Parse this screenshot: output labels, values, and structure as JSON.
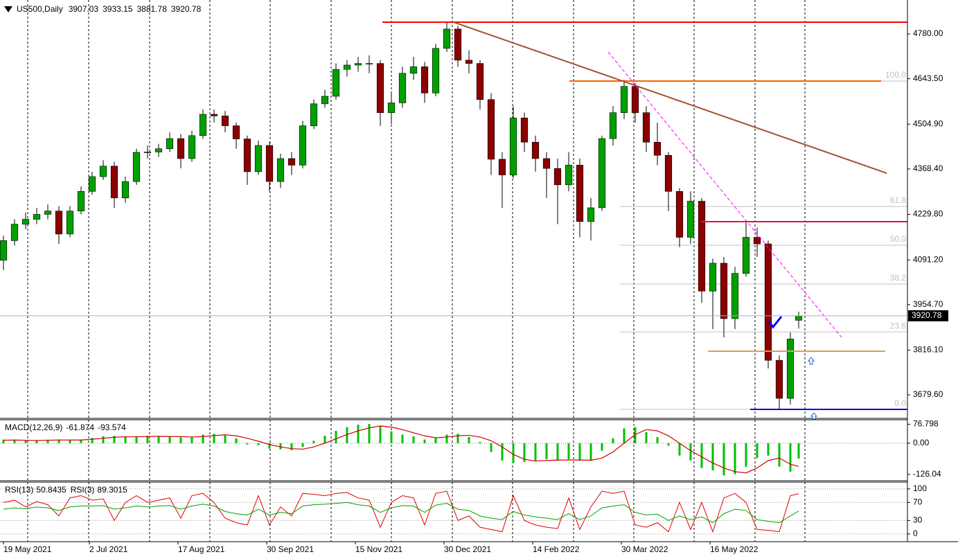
{
  "chart_data": [
    {
      "type": "candlestick",
      "title": "US500,Daily",
      "x": [
        0,
        4,
        8,
        12,
        16,
        20,
        24,
        28,
        32,
        36,
        40,
        44,
        48,
        52,
        56,
        60,
        64,
        68,
        72,
        76,
        80,
        84,
        88,
        92,
        96,
        100,
        104,
        108,
        112,
        116,
        120,
        124,
        128,
        132,
        136,
        140,
        144,
        148,
        152,
        156,
        160,
        164,
        168,
        172,
        176,
        180,
        184,
        188,
        192,
        196,
        200,
        204,
        208,
        212,
        216,
        220,
        224,
        228,
        232,
        236,
        240,
        244,
        248,
        252,
        256,
        260,
        264,
        268,
        272,
        276,
        280,
        284,
        287
      ],
      "open": [
        4090,
        4150,
        4200,
        4215,
        4230,
        4240,
        4170,
        4240,
        4300,
        4345,
        4377,
        4280,
        4330,
        4419,
        4420,
        4430,
        4461,
        4400,
        4470,
        4535,
        4530,
        4500,
        4460,
        4360,
        4440,
        4330,
        4400,
        4380,
        4500,
        4567,
        4590,
        4672,
        4685,
        4690,
        4690,
        4540,
        4570,
        4660,
        4680,
        4600,
        4736,
        4795,
        4700,
        4690,
        4580,
        4398,
        4350,
        4524,
        4450,
        4400,
        4370,
        4320,
        4380,
        4208,
        4250,
        4461,
        4540,
        4620,
        4540,
        4450,
        4410,
        4300,
        4160,
        4270,
        3996,
        4081,
        3912,
        4050,
        4160,
        4140,
        3785,
        3669,
        3907.03
      ],
      "high": [
        4165,
        4215,
        4235,
        4250,
        4260,
        4255,
        4255,
        4315,
        4360,
        4395,
        4390,
        4345,
        4430,
        4440,
        4445,
        4480,
        4475,
        4485,
        4550,
        4550,
        4545,
        4510,
        4470,
        4455,
        4450,
        4415,
        4420,
        4515,
        4580,
        4610,
        4690,
        4700,
        4710,
        4715,
        4700,
        4600,
        4680,
        4710,
        4695,
        4750,
        4818,
        4805,
        4730,
        4700,
        4600,
        4420,
        4560,
        4540,
        4470,
        4420,
        4400,
        4420,
        4400,
        4280,
        4470,
        4560,
        4640,
        4630,
        4560,
        4510,
        4420,
        4310,
        4300,
        4280,
        4095,
        4100,
        4070,
        4205,
        4190,
        4150,
        3800,
        3870,
        3933.15
      ],
      "low": [
        4060,
        4135,
        4185,
        4200,
        4215,
        4140,
        4160,
        4230,
        4290,
        4335,
        4250,
        4265,
        4320,
        4400,
        4405,
        4420,
        4370,
        4390,
        4460,
        4510,
        4480,
        4430,
        4320,
        4350,
        4300,
        4310,
        4350,
        4370,
        4490,
        4555,
        4580,
        4650,
        4665,
        4660,
        4500,
        4505,
        4555,
        4640,
        4570,
        4590,
        4725,
        4680,
        4660,
        4550,
        4350,
        4250,
        4340,
        4420,
        4360,
        4280,
        4200,
        4300,
        4160,
        4150,
        4240,
        4440,
        4520,
        4510,
        4420,
        4380,
        4240,
        4130,
        4140,
        3960,
        3880,
        3855,
        3880,
        4040,
        4100,
        3760,
        3636,
        3650,
        3881.78
      ],
      "close": [
        4150,
        4200,
        4215,
        4230,
        4240,
        4170,
        4240,
        4300,
        4345,
        4377,
        4280,
        4330,
        4419,
        4420,
        4430,
        4461,
        4400,
        4470,
        4535,
        4530,
        4500,
        4460,
        4360,
        4440,
        4330,
        4400,
        4380,
        4500,
        4567,
        4590,
        4672,
        4685,
        4690,
        4690,
        4540,
        4570,
        4660,
        4680,
        4600,
        4736,
        4795,
        4700,
        4690,
        4580,
        4398,
        4350,
        4524,
        4450,
        4400,
        4370,
        4320,
        4380,
        4208,
        4250,
        4461,
        4540,
        4620,
        4540,
        4450,
        4410,
        4300,
        4160,
        4270,
        3996,
        4081,
        3912,
        4050,
        4160,
        4140,
        3785,
        3669,
        3850,
        3920.78
      ],
      "up_color": "#00a000",
      "down_color": "#8b0000",
      "wick_color": "#000000",
      "price_line_color": "#9fb0c4",
      "xlim": [
        -1.25,
        326.25
      ],
      "xticks": [
        {
          "value": 0,
          "label": "19 May 2021"
        },
        {
          "value": 31,
          "label": "2 Jul 2021"
        },
        {
          "value": 63,
          "label": "17 Aug 2021"
        },
        {
          "value": 95,
          "label": "30 Sep 2021"
        },
        {
          "value": 127,
          "label": "15 Nov 2021"
        },
        {
          "value": 159,
          "label": "30 Dec 2021"
        },
        {
          "value": 191,
          "label": "14 Feb 2022"
        },
        {
          "value": 223,
          "label": "30 Mar 2022"
        },
        {
          "value": 255,
          "label": "16 May 2022"
        }
      ],
      "ylim": [
        3610,
        4883.5
      ],
      "yticks": [
        {
          "value": 4780,
          "label": "4780.00"
        },
        {
          "value": 4643.5,
          "label": "4643.50"
        },
        {
          "value": 4504.9,
          "label": "4504.90"
        },
        {
          "value": 4368.4,
          "label": "4368.40"
        },
        {
          "value": 4229.8,
          "label": "4229.80"
        },
        {
          "value": 4091.2,
          "label": "4091.20"
        },
        {
          "value": 3954.7,
          "label": "3954.70"
        },
        {
          "value": 3816.1,
          "label": "3816.10"
        },
        {
          "value": 3679.6,
          "label": "3679.60"
        }
      ],
      "fibonacci": {
        "low": 3635.3,
        "high": 4636.4,
        "x": [
          222.5,
          326.25
        ],
        "color": "#c0c0c0",
        "levels": [
          {
            "value": 100,
            "label": "100.0"
          },
          {
            "value": 61.8,
            "label": "61.8"
          },
          {
            "value": 50,
            "label": "50.0"
          },
          {
            "value": 38.2,
            "label": "38.2"
          },
          {
            "value": 23.6,
            "label": "23.6"
          },
          {
            "value": 0,
            "label": "0.0"
          }
        ]
      },
      "lines": [
        {
          "x": [
            136.75,
            326.25
          ],
          "y": [
            4815.9,
            4815.9
          ],
          "color": "#ff0000"
        },
        {
          "x": [
            204.25,
            316.75
          ],
          "y": [
            4636.4,
            4636.4
          ],
          "color": "#ff6000"
        },
        {
          "x": [
            251.75,
            326.25
          ],
          "y": [
            4207.7,
            4207.7
          ],
          "color": "#dc143c"
        },
        {
          "x": [
            269.5,
            326.25
          ],
          "y": [
            3635.3,
            3635.3
          ],
          "color": "#0000ff"
        },
        {
          "x": [
            254.25,
            318.25
          ],
          "y": [
            3812.7,
            3812.7
          ],
          "color": "#d2a060"
        },
        {
          "x": [
            162.5,
            318.75
          ],
          "y": [
            4815.9,
            4355.5
          ],
          "color": "#a0522d"
        },
        {
          "x": [
            218.25,
            302.5
          ],
          "y": [
            4725,
            3855
          ],
          "color": "#ff00ff",
          "dashed": true
        }
      ]
    },
    {
      "type": "macd",
      "title": "MACD(12,26,9)",
      "series": [
        {
          "color": "#00c000",
          "values": [
            15,
            12,
            10,
            12,
            14,
            15,
            12,
            15,
            22,
            28,
            30,
            25,
            28,
            30,
            26,
            28,
            24,
            26,
            35,
            38,
            32,
            20,
            -5,
            -8,
            -22,
            -25,
            -28,
            -15,
            10,
            30,
            50,
            65,
            75,
            78,
            68,
            48,
            35,
            28,
            15,
            22,
            35,
            38,
            25,
            5,
            -35,
            -70,
            -80,
            -75,
            -70,
            -65,
            -70,
            -65,
            -70,
            -70,
            -30,
            20,
            60,
            65,
            45,
            25,
            -10,
            -50,
            -70,
            -100,
            -110,
            -130,
            -125,
            -95,
            -60,
            -50,
            -95,
            -115,
            -61.874
          ]
        },
        {
          "color": "#d00000",
          "values": [
            12,
            13,
            12,
            11,
            12,
            13,
            13,
            13,
            16,
            20,
            24,
            26,
            26,
            27,
            28,
            27,
            27,
            25,
            27,
            31,
            34,
            30,
            20,
            8,
            -5,
            -15,
            -22,
            -24,
            -15,
            0,
            18,
            35,
            50,
            62,
            70,
            65,
            55,
            42,
            30,
            22,
            25,
            30,
            32,
            25,
            10,
            -15,
            -45,
            -65,
            -72,
            -70,
            -68,
            -68,
            -68,
            -69,
            -60,
            -35,
            0,
            35,
            55,
            50,
            30,
            0,
            -30,
            -55,
            -80,
            -100,
            -115,
            -120,
            -100,
            -70,
            -60,
            -85,
            -93.574
          ]
        }
      ],
      "ylim": [
        -146,
        92
      ],
      "yticks": [
        76.798,
        {
          "value": 0,
          "label": "0.00"
        },
        -126.04
      ]
    },
    {
      "type": "rsi",
      "series": [
        {
          "name": "RSI(13)",
          "color": "#00a000",
          "values": [
            55,
            58,
            56,
            60,
            58,
            52,
            60,
            62,
            62,
            63,
            55,
            58,
            62,
            60,
            62,
            63,
            55,
            62,
            66,
            62,
            50,
            45,
            42,
            55,
            42,
            48,
            45,
            62,
            65,
            66,
            68,
            70,
            65,
            62,
            48,
            58,
            63,
            62,
            48,
            64,
            68,
            55,
            52,
            40,
            35,
            32,
            50,
            42,
            38,
            35,
            32,
            45,
            32,
            40,
            58,
            62,
            65,
            48,
            42,
            44,
            30,
            40,
            32,
            38,
            25,
            45,
            55,
            52,
            32,
            28,
            25,
            40,
            50.8435
          ]
        },
        {
          "name": "RSI(3)",
          "color": "#e00000",
          "values": [
            70,
            75,
            60,
            72,
            65,
            40,
            80,
            85,
            75,
            78,
            30,
            70,
            85,
            70,
            75,
            80,
            35,
            85,
            90,
            70,
            35,
            25,
            20,
            85,
            20,
            60,
            40,
            90,
            88,
            85,
            90,
            92,
            80,
            75,
            15,
            70,
            85,
            80,
            20,
            90,
            95,
            30,
            40,
            15,
            10,
            5,
            85,
            30,
            20,
            15,
            12,
            80,
            10,
            60,
            95,
            90,
            95,
            20,
            15,
            25,
            5,
            70,
            10,
            70,
            5,
            80,
            90,
            70,
            10,
            8,
            5,
            85,
            89.3015
          ]
        }
      ],
      "ylim": [
        -14,
        112
      ],
      "yticks": [
        100,
        70,
        30,
        0
      ]
    }
  ]
}
